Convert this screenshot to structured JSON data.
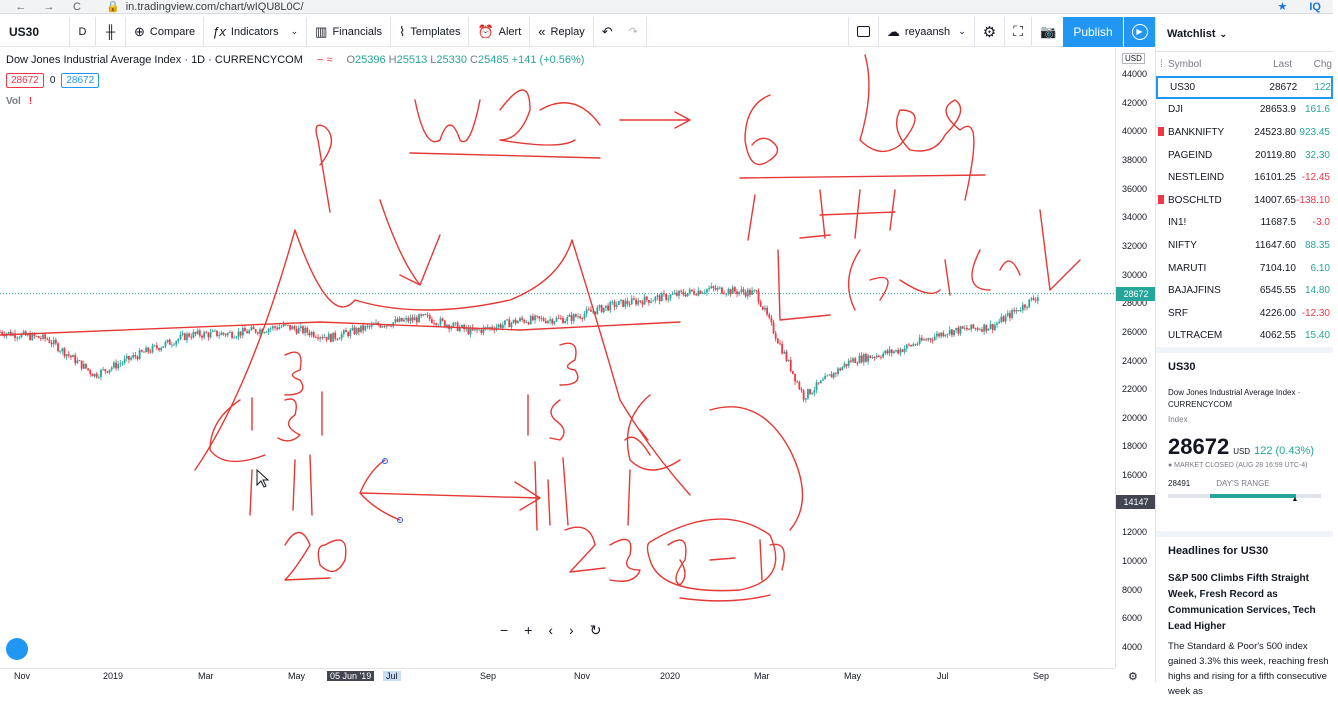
{
  "browser": {
    "url": "in.tradingview.com/chart/wIQU8L0C/",
    "back": "←",
    "forward": "→",
    "reload": "C",
    "ext": "IQ"
  },
  "toolbar": {
    "symbol": "US30",
    "interval": "D",
    "compare": "Compare",
    "indicators": "Indicators",
    "financials": "Financials",
    "templates": "Templates",
    "alert": "Alert",
    "replay": "Replay",
    "user": "reyaansh",
    "publish": "Publish"
  },
  "chart": {
    "title": "Dow Jones Industrial Average Index · 1D · CURRENCYCOM",
    "ohlc": {
      "o": "25396",
      "h": "25513",
      "l": "25330",
      "c": "25485",
      "change": "+141 (+0.56%)"
    },
    "sell_price": "28672",
    "spread": "0",
    "buy_price": "28672",
    "vol_label": "Vol",
    "price_axis_unit": "USD",
    "price_ticks": [
      "44000",
      "42000",
      "40000",
      "38000",
      "36000",
      "34000",
      "32000",
      "30000",
      "28000",
      "26000",
      "24000",
      "22000",
      "20000",
      "18000",
      "16000",
      "14000",
      "12000",
      "10000",
      "8000",
      "6000",
      "4000"
    ],
    "last_price_label": "28672",
    "crosshair_price_label": "14147",
    "time_ticks": [
      "Nov",
      "2019",
      "Mar",
      "May",
      "05 Jun '19",
      "Jul",
      "Sep",
      "Nov",
      "2020",
      "Mar",
      "May",
      "Jul",
      "Sep"
    ],
    "colors": {
      "up": "#26a69a",
      "down": "#f23645",
      "annotation": "#e53935",
      "accent": "#2196f3"
    }
  },
  "chart_data": {
    "type": "line",
    "title": "",
    "xlabel": "",
    "ylabel": "",
    "ylim": [
      4000,
      44000
    ],
    "x": [
      "2018-10",
      "2018-11",
      "2018-12",
      "2019-01",
      "2019-02",
      "2019-03",
      "2019-04",
      "2019-05",
      "2019-06",
      "2019-07",
      "2019-08",
      "2019-09",
      "2019-10",
      "2019-11",
      "2019-12",
      "2020-01",
      "2020-02",
      "2020-03",
      "2020-04",
      "2020-05",
      "2020-06",
      "2020-07",
      "2020-08"
    ],
    "series": [
      {
        "values": [
          26000,
          25500,
          23000,
          24500,
          25800,
          25900,
          26400,
          25600,
          26500,
          27000,
          26000,
          26800,
          26900,
          27900,
          28400,
          29000,
          28700,
          21500,
          24000,
          24700,
          26000,
          26400,
          28600
        ]
      }
    ]
  },
  "watchlist": {
    "title": "Watchlist",
    "columns": [
      "Symbol",
      "Last",
      "Chg"
    ],
    "rows": [
      {
        "symbol": "US30",
        "last": "28672",
        "chg": "122",
        "dir": "up",
        "flag": false
      },
      {
        "symbol": "DJI",
        "last": "28653.9",
        "chg": "161.6",
        "dir": "up",
        "flag": false
      },
      {
        "symbol": "BANKNIFTY",
        "last": "24523.80",
        "chg": "923.45",
        "dir": "up",
        "flag": true
      },
      {
        "symbol": "PAGEIND",
        "last": "20119.80",
        "chg": "32.30",
        "dir": "up",
        "flag": false
      },
      {
        "symbol": "NESTLEIND",
        "last": "16101.25",
        "chg": "-12.45",
        "dir": "dn",
        "flag": false
      },
      {
        "symbol": "BOSCHLTD",
        "last": "14007.65",
        "chg": "-138.10",
        "dir": "dn",
        "flag": true
      },
      {
        "symbol": "IN1!",
        "last": "11687.5",
        "chg": "-3.0",
        "dir": "dn",
        "flag": false
      },
      {
        "symbol": "NIFTY",
        "last": "11647.60",
        "chg": "88.35",
        "dir": "up",
        "flag": false
      },
      {
        "symbol": "MARUTI",
        "last": "7104.10",
        "chg": "6.10",
        "dir": "up",
        "flag": false
      },
      {
        "symbol": "BAJAJFINS",
        "last": "6545.55",
        "chg": "14.80",
        "dir": "up",
        "flag": false
      },
      {
        "symbol": "SRF",
        "last": "4226.00",
        "chg": "-12.30",
        "dir": "dn",
        "flag": false
      },
      {
        "symbol": "ULTRACEM",
        "last": "4062.55",
        "chg": "15.40",
        "dir": "up",
        "flag": false
      }
    ]
  },
  "detail": {
    "symbol": "US30",
    "description": "Dow Jones Industrial Average Index · CURRENCYCOM",
    "type": "Index",
    "price": "28672",
    "currency": "USD",
    "change": "122 (0.43%)",
    "market_status": "● MARKET CLOSED (AUG 28 16:59 UTC-4)",
    "day_low": "28491",
    "day_range_label": "DAY'S RANGE",
    "day_range_position": 0.85
  },
  "headlines": {
    "title": "Headlines for US30",
    "headline": "S&P 500 Climbs Fifth Straight Week, Fresh Record as Communication Services, Tech Lead Higher",
    "body": "The Standard & Poor's 500 index gained 3.3% this week, reaching fresh highs and rising for a fifth consecutive week as"
  },
  "annotations": [
    "P",
    "W2",
    "6 leg",
    "1 IH",
    "1 Calender",
    "3",
    "1 3 1",
    "1 1",
    "20",
    "3",
    "1 5",
    "1 1",
    "23",
    "8-10",
    "(C",
    "1(",
    "1(",
    "C"
  ]
}
